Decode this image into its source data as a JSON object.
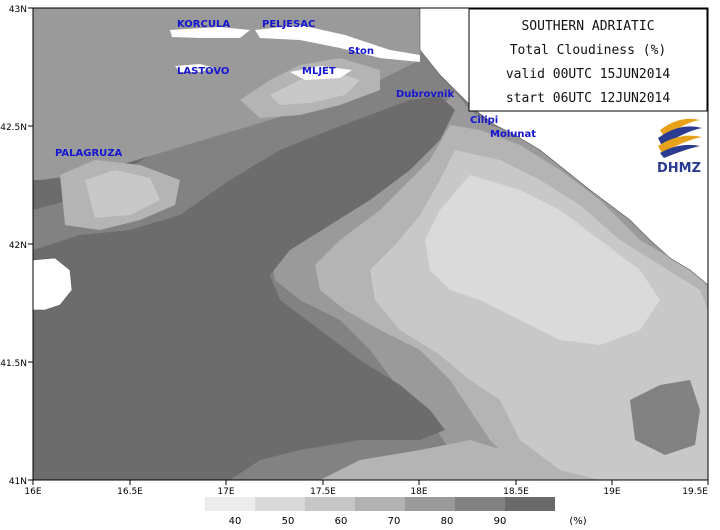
{
  "map": {
    "region": "SOUTHERN ADRIATIC",
    "parameter": "Total Cloudiness (%)",
    "valid": "valid 00UTC 15JUN2014",
    "start": "start 06UTC 12JUN2014",
    "logo": "DHMZ",
    "x_ticks": [
      "16E",
      "16.5E",
      "17E",
      "17.5E",
      "18E",
      "18.5E",
      "19E",
      "19.5E"
    ],
    "y_ticks": [
      "43N",
      "42.5N",
      "42N",
      "41.5N",
      "41N"
    ],
    "places": [
      {
        "id": "korcula",
        "name": "KORCULA"
      },
      {
        "id": "peljesac",
        "name": "PELJESAC"
      },
      {
        "id": "ston",
        "name": "Ston"
      },
      {
        "id": "lastovo",
        "name": "LASTOVO"
      },
      {
        "id": "mljet",
        "name": "MLJET"
      },
      {
        "id": "dubrovnik",
        "name": "Dubrovnik"
      },
      {
        "id": "cilipi",
        "name": "Cilipi"
      },
      {
        "id": "molunat",
        "name": "Molunat"
      },
      {
        "id": "palagruza",
        "name": "PALAGRUZA"
      }
    ],
    "legend": {
      "labels": [
        "40",
        "50",
        "60",
        "70",
        "80",
        "90"
      ],
      "unit": "(%)",
      "colors": [
        "#ececec",
        "#dadada",
        "#c6c6c6",
        "#b2b2b2",
        "#9a9a9a",
        "#828282",
        "#6a6a6a"
      ]
    },
    "colors": {
      "land": "#ffffff",
      "shade_90": "#6c6c6c",
      "shade_80": "#828282",
      "shade_70": "#9a9a9a",
      "shade_60": "#b4b4b4",
      "shade_50": "#c8c8c8",
      "shade_40": "#dadada",
      "place_label": "#1515d2"
    }
  }
}
